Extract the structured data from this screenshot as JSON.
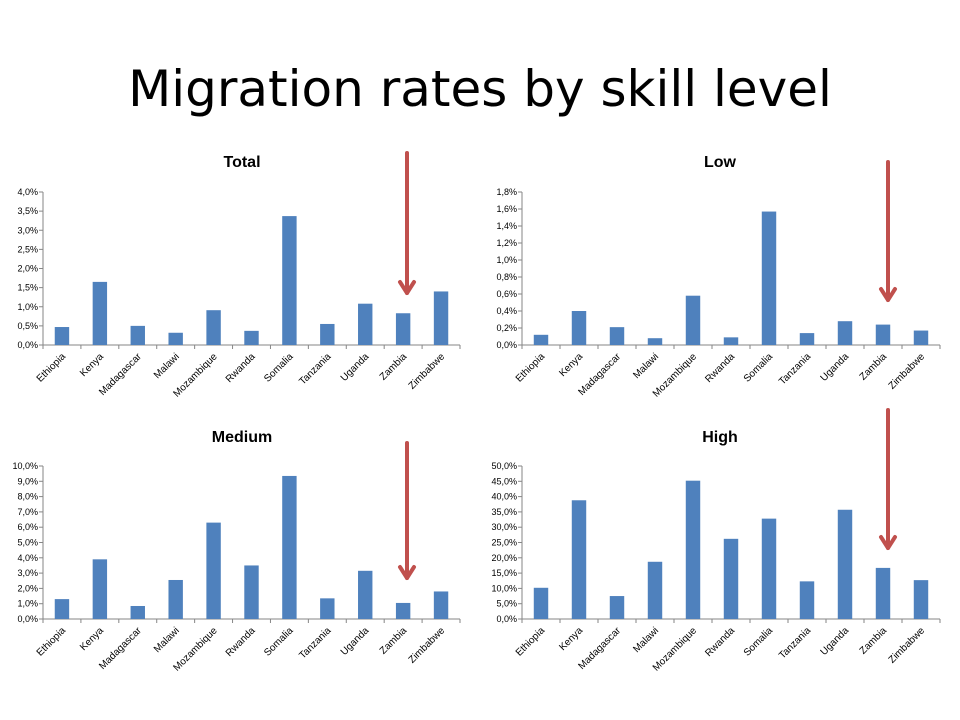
{
  "slide": {
    "title": "Migration rates by skill level"
  },
  "colors": {
    "bar": "#4f81bd",
    "arrow": "#c0504d",
    "axis": "#868686"
  },
  "chart_data": [
    {
      "type": "bar",
      "title": "Total",
      "categories": [
        "Ethiopia",
        "Kenya",
        "Madagascar",
        "Malawi",
        "Mozambique",
        "Rwanda",
        "Somalia",
        "Tanzania",
        "Uganda",
        "Zambia",
        "Zimbabwe"
      ],
      "values": [
        0.47,
        1.65,
        0.5,
        0.32,
        0.91,
        0.37,
        3.37,
        0.55,
        1.08,
        0.83,
        1.4
      ],
      "ylim": [
        0,
        4.0
      ],
      "yticks": [
        "0,0%",
        "0,5%",
        "1,0%",
        "1,5%",
        "2,0%",
        "2,5%",
        "3,0%",
        "3,5%",
        "4,0%"
      ],
      "xlabel": "",
      "ylabel": "",
      "grid": false,
      "highlight": "Zambia"
    },
    {
      "type": "bar",
      "title": "Low",
      "categories": [
        "Ethiopia",
        "Kenya",
        "Madagascar",
        "Malawi",
        "Mozambique",
        "Rwanda",
        "Somalia",
        "Tanzania",
        "Uganda",
        "Zambia",
        "Zimbabwe"
      ],
      "values": [
        0.12,
        0.4,
        0.21,
        0.08,
        0.58,
        0.09,
        1.57,
        0.14,
        0.28,
        0.24,
        0.17
      ],
      "ylim": [
        0,
        1.8
      ],
      "yticks": [
        "0,0%",
        "0,2%",
        "0,4%",
        "0,6%",
        "0,8%",
        "1,0%",
        "1,2%",
        "1,4%",
        "1,6%",
        "1,8%"
      ],
      "xlabel": "",
      "ylabel": "",
      "grid": false,
      "highlight": "Zambia"
    },
    {
      "type": "bar",
      "title": "Medium",
      "categories": [
        "Ethiopia",
        "Kenya",
        "Madagascar",
        "Malawi",
        "Mozambique",
        "Rwanda",
        "Somalia",
        "Tanzania",
        "Uganda",
        "Zambia",
        "Zimbabwe"
      ],
      "values": [
        1.3,
        3.9,
        0.85,
        2.55,
        6.3,
        3.5,
        9.35,
        1.35,
        3.15,
        1.05,
        1.8
      ],
      "ylim": [
        0,
        10.0
      ],
      "yticks": [
        "0,0%",
        "1,0%",
        "2,0%",
        "3,0%",
        "4,0%",
        "5,0%",
        "6,0%",
        "7,0%",
        "8,0%",
        "9,0%",
        "10,0%"
      ],
      "xlabel": "",
      "ylabel": "",
      "grid": false,
      "highlight": "Zambia"
    },
    {
      "type": "bar",
      "title": "High",
      "categories": [
        "Ethiopia",
        "Kenya",
        "Madagascar",
        "Malawi",
        "Mozambique",
        "Rwanda",
        "Somalia",
        "Tanzania",
        "Uganda",
        "Zambia",
        "Zimbabwe"
      ],
      "values": [
        10.2,
        38.8,
        7.5,
        18.7,
        45.2,
        26.2,
        32.8,
        12.3,
        35.7,
        16.7,
        12.7
      ],
      "ylim": [
        0,
        50.0
      ],
      "yticks": [
        "0,0%",
        "5,0%",
        "10,0%",
        "15,0%",
        "20,0%",
        "25,0%",
        "30,0%",
        "35,0%",
        "40,0%",
        "45,0%",
        "50,0%"
      ],
      "xlabel": "",
      "ylabel": "",
      "grid": false,
      "highlight": "Zambia"
    }
  ]
}
